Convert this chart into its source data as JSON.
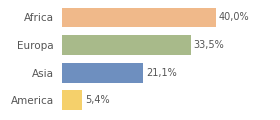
{
  "categories": [
    "America",
    "Asia",
    "Europa",
    "Africa"
  ],
  "values": [
    5.4,
    21.1,
    33.5,
    40.0
  ],
  "labels": [
    "5,4%",
    "21,1%",
    "33,5%",
    "40,0%"
  ],
  "bar_colors": [
    "#f5d06b",
    "#6e8fbf",
    "#a8ba8a",
    "#f0b98a"
  ],
  "background_color": "#ffffff",
  "xlim": [
    0,
    48
  ],
  "label_fontsize": 7,
  "tick_fontsize": 7.5,
  "bar_height": 0.72
}
